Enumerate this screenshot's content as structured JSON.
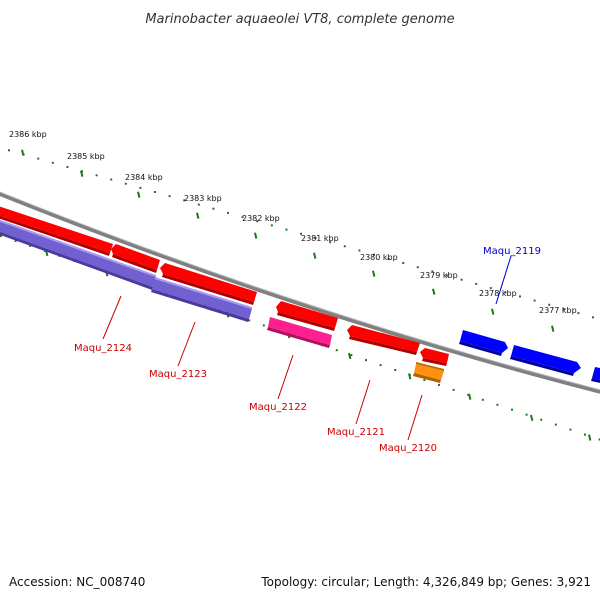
{
  "title": "Marinobacter aquaeolei VT8, complete genome",
  "footer": {
    "accession": "Accession: NC_008740",
    "topology": "Topology: circular; Length: 4,326,849 bp; Genes: 3,921"
  },
  "colors": {
    "backbone": "#808080",
    "forward_cds": "#ff0000",
    "reverse_cds": "#7060d0",
    "pink_cds": "#ff2090",
    "orange_cds": "#ff9010",
    "blue_cds": "#0000ff",
    "tick": "#1a7a1a",
    "red_label": "#cc0000",
    "blue_label": "#0000cc"
  },
  "ticks": [
    {
      "label": "2386 kbp"
    },
    {
      "label": "2385 kbp"
    },
    {
      "label": "2384 kbp"
    },
    {
      "label": "2383 kbp"
    },
    {
      "label": "2382 kbp"
    },
    {
      "label": "2381 kbp"
    },
    {
      "label": "2380 kbp"
    },
    {
      "label": "2379 kbp"
    },
    {
      "label": "2378 kbp"
    },
    {
      "label": "2377 kbp"
    }
  ],
  "gene_labels": [
    {
      "text": "Maqu_2124",
      "color": "red"
    },
    {
      "text": "Maqu_2123",
      "color": "red"
    },
    {
      "text": "Maqu_2122",
      "color": "red"
    },
    {
      "text": "Maqu_2121",
      "color": "red"
    },
    {
      "text": "Maqu_2120",
      "color": "red"
    },
    {
      "text": "Maqu_2119",
      "color": "blue"
    }
  ]
}
